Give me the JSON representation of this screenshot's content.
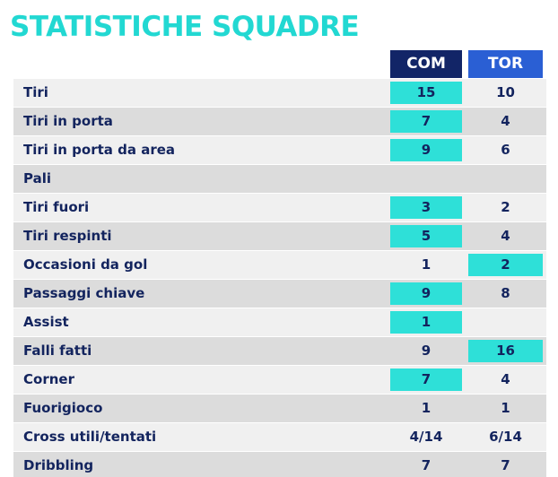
{
  "title": "STATISTICHE SQUADRE",
  "teams": {
    "home": "COM",
    "away": "TOR"
  },
  "colors": {
    "title": "#22d8d2",
    "highlight": "#2ee0d8",
    "home_header": "#122567",
    "away_header": "#2a5fd4",
    "text": "#13245e"
  },
  "rows": [
    {
      "label": "Tiri",
      "home": "15",
      "away": "10",
      "leader": "home"
    },
    {
      "label": "Tiri in porta",
      "home": "7",
      "away": "4",
      "leader": "home"
    },
    {
      "label": "Tiri in porta da area",
      "home": "9",
      "away": "6",
      "leader": "home"
    },
    {
      "label": "Pali",
      "home": "",
      "away": "",
      "leader": ""
    },
    {
      "label": "Tiri fuori",
      "home": "3",
      "away": "2",
      "leader": "home"
    },
    {
      "label": "Tiri respinti",
      "home": "5",
      "away": "4",
      "leader": "home"
    },
    {
      "label": "Occasioni da gol",
      "home": "1",
      "away": "2",
      "leader": "away"
    },
    {
      "label": "Passaggi chiave",
      "home": "9",
      "away": "8",
      "leader": "home"
    },
    {
      "label": "Assist",
      "home": "1",
      "away": "",
      "leader": "home"
    },
    {
      "label": "Falli fatti",
      "home": "9",
      "away": "16",
      "leader": "away"
    },
    {
      "label": "Corner",
      "home": "7",
      "away": "4",
      "leader": "home"
    },
    {
      "label": "Fuorigioco",
      "home": "1",
      "away": "1",
      "leader": ""
    },
    {
      "label": "Cross utili/tentati",
      "home": "4/14",
      "away": "6/14",
      "leader": ""
    },
    {
      "label": "Dribbling",
      "home": "7",
      "away": "7",
      "leader": ""
    }
  ]
}
